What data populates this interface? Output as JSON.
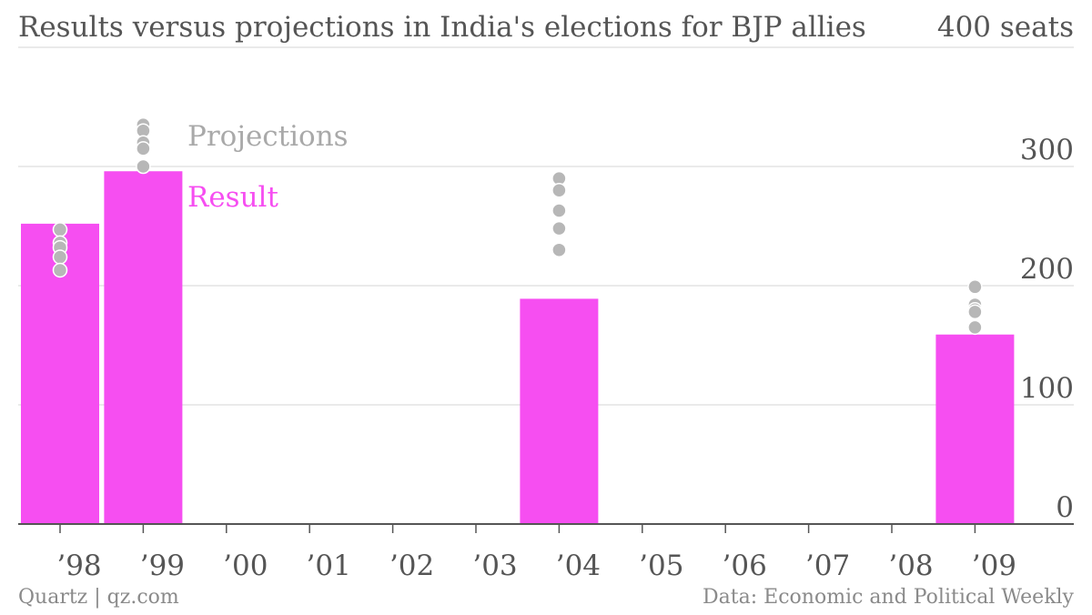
{
  "title": "Results versus projections in India's elections for BJP allies",
  "top_unit": "400 seats",
  "footer": {
    "source_left": "Quartz | qz.com",
    "source_right": "Data: Economic and Political Weekly"
  },
  "chart_data": {
    "type": "bar",
    "title": "Results versus projections in India's elections for BJP allies",
    "xlabel": "",
    "ylabel": "",
    "ylim": [
      0,
      400
    ],
    "y_ticks": [
      "0",
      "100",
      "200",
      "300"
    ],
    "y_tick_values": [
      0,
      100,
      200,
      300
    ],
    "grid": true,
    "categories": [
      "’98",
      "’99",
      "’00",
      "’01",
      "’02",
      "’03",
      "’04",
      "’05",
      "’06",
      "’07",
      "’08",
      "’09"
    ],
    "legend": {
      "projections": "Projections",
      "result": "Result"
    },
    "colors": {
      "result": "#f64ef1",
      "projection": "#b7b7b7",
      "grid": "#e3e3e3",
      "axis": "#555555"
    },
    "series": [
      {
        "values": [
          252,
          296,
          null,
          null,
          null,
          null,
          189,
          null,
          null,
          null,
          null,
          159
        ]
      }
    ],
    "projections": [
      {
        "category": "’98",
        "values": [
          247,
          236,
          232,
          224,
          213
        ]
      },
      {
        "category": "’99",
        "values": [
          335,
          330,
          320,
          315,
          300
        ]
      },
      {
        "category": "’04",
        "values": [
          290,
          280,
          263,
          248,
          230
        ]
      },
      {
        "category": "’09",
        "values": [
          199,
          184,
          180,
          178,
          165
        ]
      }
    ]
  }
}
